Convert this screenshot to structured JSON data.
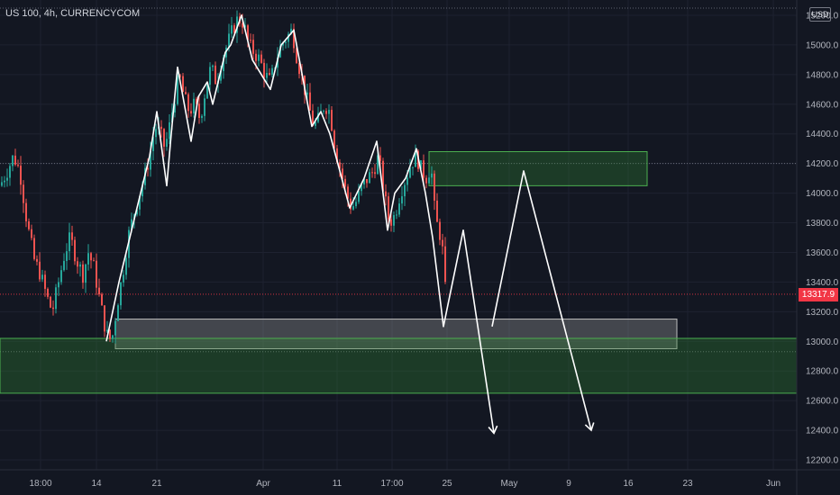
{
  "header": {
    "title": "US 100, 4h, CURRENCYCOM",
    "currency_button": "USD"
  },
  "last_price_label": "13317.9",
  "colors": {
    "background": "#131722",
    "up": "#26a69a",
    "down": "#ef5350",
    "zone_fill": "#2e7d32",
    "zone_border": "#4caf50",
    "grey_zone": "#9e9e9e",
    "drawing": "#ffffff",
    "last_price": "#f23645"
  },
  "chart_data": {
    "type": "candlestick",
    "ylim": [
      12100,
      15250
    ],
    "y_ticks": [
      12200,
      12400,
      12600,
      12800,
      13000,
      13200,
      13400,
      13600,
      13800,
      14000,
      14200,
      14400,
      14600,
      14800,
      15000,
      15200
    ],
    "x_ticks": [
      "18:00",
      "14",
      "21",
      "Apr",
      "11",
      "17:00",
      "25",
      "May",
      "9",
      "16",
      "23",
      "Jun"
    ],
    "last_price": 13317.9,
    "price_path": [
      [
        0,
        14050
      ],
      [
        8,
        14150
      ],
      [
        15,
        14250
      ],
      [
        22,
        14150
      ],
      [
        30,
        13800
      ],
      [
        38,
        13550
      ],
      [
        45,
        13450
      ],
      [
        52,
        13300
      ],
      [
        58,
        13200
      ],
      [
        65,
        13400
      ],
      [
        72,
        13600
      ],
      [
        78,
        13700
      ],
      [
        85,
        13550
      ],
      [
        92,
        13450
      ],
      [
        98,
        13600
      ],
      [
        104,
        13500
      ],
      [
        110,
        13300
      ],
      [
        118,
        13050
      ],
      [
        124,
        13000
      ],
      [
        130,
        13250
      ],
      [
        136,
        13450
      ],
      [
        142,
        13700
      ],
      [
        148,
        13850
      ],
      [
        155,
        14000
      ],
      [
        160,
        14100
      ],
      [
        166,
        14250
      ],
      [
        172,
        14450
      ],
      [
        178,
        14400
      ],
      [
        183,
        14300
      ],
      [
        188,
        14450
      ],
      [
        194,
        14650
      ],
      [
        199,
        14800
      ],
      [
        204,
        14650
      ],
      [
        210,
        14550
      ],
      [
        216,
        14600
      ],
      [
        222,
        14500
      ],
      [
        228,
        14700
      ],
      [
        234,
        14850
      ],
      [
        240,
        14750
      ],
      [
        246,
        14900
      ],
      [
        252,
        15000
      ],
      [
        258,
        15100
      ],
      [
        264,
        15180
      ],
      [
        270,
        15150
      ],
      [
        276,
        15000
      ],
      [
        282,
        14950
      ],
      [
        288,
        14900
      ],
      [
        294,
        14800
      ],
      [
        300,
        14750
      ],
      [
        306,
        14900
      ],
      [
        312,
        15000
      ],
      [
        318,
        15050
      ],
      [
        324,
        15100
      ],
      [
        330,
        14900
      ],
      [
        336,
        14750
      ],
      [
        342,
        14600
      ],
      [
        348,
        14450
      ],
      [
        354,
        14500
      ],
      [
        360,
        14600
      ],
      [
        366,
        14550
      ],
      [
        372,
        14300
      ],
      [
        378,
        14150
      ],
      [
        384,
        14000
      ],
      [
        390,
        13900
      ],
      [
        396,
        13950
      ],
      [
        402,
        14050
      ],
      [
        408,
        14100
      ],
      [
        414,
        14150
      ],
      [
        420,
        14250
      ],
      [
        426,
        14000
      ],
      [
        432,
        13800
      ],
      [
        438,
        13850
      ],
      [
        444,
        14000
      ],
      [
        450,
        14100
      ],
      [
        456,
        14200
      ],
      [
        462,
        14250
      ],
      [
        468,
        14150
      ],
      [
        474,
        14100
      ],
      [
        478,
        14200
      ],
      [
        482,
        13900
      ],
      [
        486,
        13750
      ],
      [
        490,
        13700
      ],
      [
        494,
        13350
      ],
      [
        496,
        13320
      ]
    ],
    "zones": [
      {
        "from_x": "21",
        "to_x": "23",
        "low": 13050,
        "high": 13050,
        "style": "green"
      },
      {
        "from_x": "25",
        "to_x": "16",
        "low": 14050,
        "high": 14280,
        "style": "green"
      },
      {
        "from_x": "14",
        "to_x": "23",
        "low": 12950,
        "high": 13150,
        "style": "grey"
      },
      {
        "from_x": "18:00",
        "to_x": "Jun",
        "low": 12650,
        "high": 13020,
        "style": "green"
      }
    ],
    "drawn_zigzag": [
      [
        118,
        13000
      ],
      [
        132,
        13400
      ],
      [
        144,
        13700
      ],
      [
        158,
        14050
      ],
      [
        166,
        14250
      ],
      [
        174,
        14550
      ],
      [
        185,
        14050
      ],
      [
        190,
        14400
      ],
      [
        197,
        14850
      ],
      [
        212,
        14350
      ],
      [
        220,
        14650
      ],
      [
        230,
        14750
      ],
      [
        236,
        14600
      ],
      [
        250,
        14950
      ],
      [
        256,
        15000
      ],
      [
        268,
        15200
      ],
      [
        280,
        14900
      ],
      [
        300,
        14700
      ],
      [
        312,
        15000
      ],
      [
        326,
        15100
      ],
      [
        346,
        14450
      ],
      [
        356,
        14550
      ],
      [
        366,
        14400
      ],
      [
        388,
        13900
      ],
      [
        404,
        14100
      ],
      [
        418,
        14350
      ],
      [
        430,
        13750
      ],
      [
        438,
        14000
      ],
      [
        450,
        14100
      ],
      [
        462,
        14300
      ],
      [
        472,
        14000
      ],
      [
        480,
        13700
      ],
      [
        492,
        13100
      ],
      [
        514,
        13750
      ],
      [
        548,
        12380
      ]
    ],
    "drawn_projection": [
      [
        546,
        13100
      ],
      [
        581,
        14150
      ],
      [
        656,
        12400
      ]
    ]
  }
}
